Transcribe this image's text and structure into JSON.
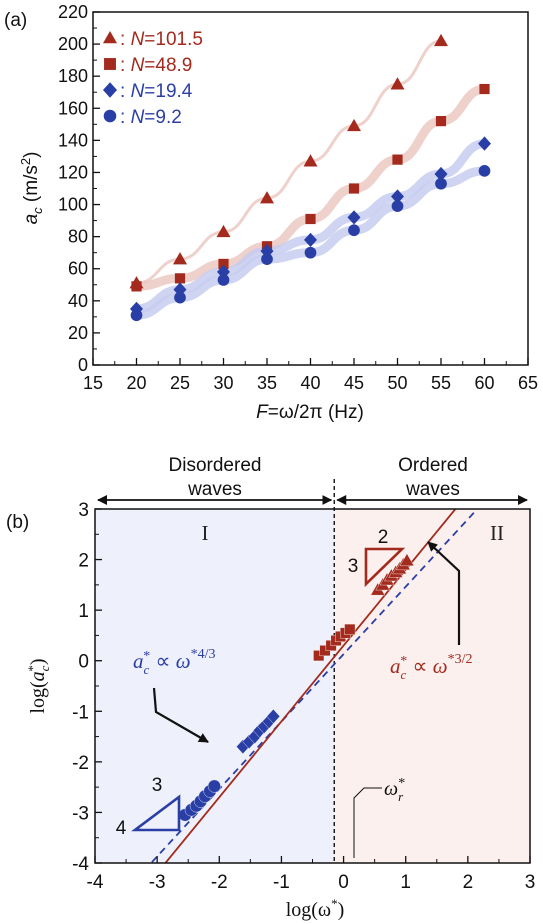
{
  "chart_data": [
    {
      "panel_label": "(a)",
      "type": "scatter",
      "xlabel": "F=ω/2π (Hz)",
      "ylabel": "a_c (m/s²)",
      "xlim": [
        15,
        65
      ],
      "ylim": [
        0,
        220
      ],
      "xticks": [
        "15",
        "20",
        "25",
        "30",
        "35",
        "40",
        "45",
        "50",
        "55",
        "60",
        "65"
      ],
      "yticks": [
        "0",
        "20",
        "40",
        "60",
        "80",
        "100",
        "120",
        "140",
        "160",
        "180",
        "200",
        "220"
      ],
      "grid": false,
      "legend_position": "top-left",
      "series": [
        {
          "name": "N=101.5",
          "marker": "triangle",
          "color": "#a32a1c",
          "x": [
            20,
            25,
            30,
            35,
            40,
            45,
            50,
            55
          ],
          "y": [
            51,
            66,
            83,
            104,
            127,
            149,
            175,
            202
          ]
        },
        {
          "name": "N=48.9",
          "marker": "square",
          "color": "#a32a1c",
          "x": [
            20,
            25,
            30,
            35,
            40,
            45,
            50,
            55,
            60
          ],
          "y": [
            49,
            54,
            63,
            74,
            91,
            110,
            128,
            152,
            172
          ]
        },
        {
          "name": "N=19.4",
          "marker": "diamond",
          "color": "#2a3fa6",
          "x": [
            20,
            25,
            30,
            35,
            40,
            45,
            50,
            55,
            60
          ],
          "y": [
            35,
            47,
            58,
            71,
            78,
            92,
            105,
            119,
            138
          ]
        },
        {
          "name": "N=9.2",
          "marker": "circle",
          "color": "#2a3fa6",
          "x": [
            20,
            25,
            30,
            35,
            40,
            45,
            50,
            55,
            60
          ],
          "y": [
            31,
            42,
            53,
            66,
            70,
            84,
            99,
            113,
            121
          ]
        }
      ]
    },
    {
      "panel_label": "(b)",
      "type": "scatter",
      "xlabel": "log(ω*)",
      "ylabel": "log(a_c*)",
      "xlim": [
        -4,
        3
      ],
      "ylim": [
        -4,
        3
      ],
      "xticks": [
        "-4",
        "-3",
        "-2",
        "-1",
        "0",
        "1",
        "2",
        "3"
      ],
      "yticks": [
        "-4",
        "-3",
        "-2",
        "-1",
        "0",
        "1",
        "2",
        "3"
      ],
      "grid": false,
      "regions": [
        {
          "name": "Disordered waves",
          "roman": "I",
          "color": "#eef0fb"
        },
        {
          "name": "Ordered waves",
          "roman": "II",
          "color": "#fbf0ee"
        }
      ],
      "region_titles": [
        "Disordered",
        "waves",
        "Ordered",
        "waves"
      ],
      "divider_x": -0.15,
      "divider_label": "ω_r*",
      "fits": [
        {
          "label": "a_c* ∝ ω*^(4/3)",
          "slope": 1.3333,
          "intercept": 0.13,
          "style": "dashed",
          "color": "#2a3fa6"
        },
        {
          "label": "a_c* ∝ ω*^(3/2)",
          "slope": 1.5,
          "intercept": 0.3,
          "style": "solid",
          "color": "#a32a1c"
        }
      ],
      "slope_triangles": [
        {
          "run": "3",
          "rise": "4",
          "color": "#2a3fa6"
        },
        {
          "run": "2",
          "rise": "3",
          "color": "#a32a1c"
        }
      ],
      "series": [
        {
          "name": "N=9.2",
          "marker": "circle",
          "color": "#2a3fa6",
          "x": [
            -2.55,
            -2.45,
            -2.37,
            -2.3,
            -2.23,
            -2.15,
            -2.08
          ],
          "y": [
            -3.05,
            -2.95,
            -2.87,
            -2.78,
            -2.68,
            -2.58,
            -2.48
          ]
        },
        {
          "name": "N=19.4",
          "marker": "diamond",
          "color": "#2a3fa6",
          "x": [
            -1.62,
            -1.52,
            -1.43,
            -1.35,
            -1.28,
            -1.2,
            -1.13
          ],
          "y": [
            -1.7,
            -1.6,
            -1.5,
            -1.38,
            -1.3,
            -1.2,
            -1.1
          ]
        },
        {
          "name": "N=48.9",
          "marker": "square",
          "color": "#a32a1c",
          "x": [
            -0.4,
            -0.3,
            -0.2,
            -0.12,
            -0.05,
            0.03,
            0.1
          ],
          "y": [
            0.1,
            0.2,
            0.3,
            0.4,
            0.48,
            0.55,
            0.62
          ]
        },
        {
          "name": "N=101.5",
          "marker": "triangle",
          "color": "#a32a1c",
          "x": [
            0.55,
            0.63,
            0.7,
            0.77,
            0.84,
            0.9,
            0.96,
            1.02
          ],
          "y": [
            1.4,
            1.5,
            1.6,
            1.68,
            1.75,
            1.82,
            1.9,
            1.98
          ]
        }
      ]
    }
  ]
}
